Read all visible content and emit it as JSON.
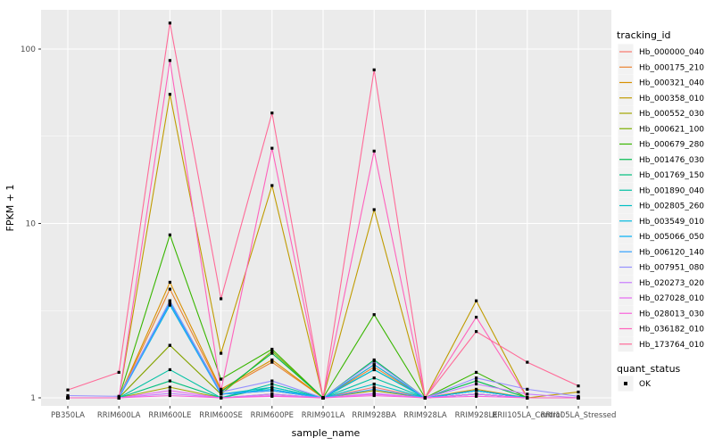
{
  "chart_data": {
    "type": "line",
    "title": "",
    "xlabel": "sample_name",
    "ylabel": "FPKM + 1",
    "y_scale": "log10",
    "ylim": [
      0.9,
      170
    ],
    "y_ticks": [
      1,
      10,
      100
    ],
    "y_tick_labels": [
      "1",
      "10",
      "100"
    ],
    "y_minor_ticks": [
      3.1623,
      31.623
    ],
    "grid": "on",
    "panel_bg": "#EBEBEB",
    "grid_color": "#FFFFFF",
    "axis_text_color": "#4D4D4D",
    "tick_mark_color": "#333333",
    "legend_position": "right",
    "categories": [
      "PB350LA",
      "RRIM600LA",
      "RRIM600LE",
      "RRIM600SE",
      "RRIM600PE",
      "RRIM901LA",
      "RRIM928BA",
      "RRIM928LA",
      "RRIM928LE",
      "RRII105LA_Control",
      "RRII105LA_Stressed"
    ],
    "series": [
      {
        "name": "Hb_000000_040",
        "color": "#F8766D",
        "values": [
          1,
          1,
          2.0,
          1.05,
          1.1,
          1,
          1.15,
          1,
          1.05,
          1,
          1
        ]
      },
      {
        "name": "Hb_000175_210",
        "color": "#EA8331",
        "values": [
          1,
          1,
          4.2,
          1.1,
          1.6,
          1,
          1.5,
          1,
          1.1,
          1,
          1
        ]
      },
      {
        "name": "Hb_000321_040",
        "color": "#D89000",
        "values": [
          1,
          1,
          4.6,
          1.12,
          1.65,
          1,
          1.55,
          1,
          1.12,
          1,
          1
        ]
      },
      {
        "name": "Hb_000358_010",
        "color": "#C09B00",
        "values": [
          1,
          1,
          55,
          1.8,
          16.5,
          1,
          12,
          1,
          3.6,
          1,
          1.08
        ]
      },
      {
        "name": "Hb_000552_030",
        "color": "#A3A500",
        "values": [
          1,
          1,
          1.15,
          1,
          1.05,
          1,
          1.1,
          1,
          1.05,
          1,
          1
        ]
      },
      {
        "name": "Hb_000621_100",
        "color": "#7CAE00",
        "values": [
          1,
          1,
          2.0,
          1.05,
          1.85,
          1,
          1.45,
          1,
          1.1,
          1,
          1
        ]
      },
      {
        "name": "Hb_000679_280",
        "color": "#39B600",
        "values": [
          1,
          1,
          8.6,
          1.28,
          1.9,
          1,
          3.0,
          1,
          1.4,
          1,
          1
        ]
      },
      {
        "name": "Hb_001476_030",
        "color": "#00BB4E",
        "values": [
          1,
          1,
          3.6,
          1.08,
          1.8,
          1,
          1.65,
          1,
          1.25,
          1,
          1
        ]
      },
      {
        "name": "Hb_001769_150",
        "color": "#00BF7D",
        "values": [
          1,
          1,
          1.25,
          1,
          1.15,
          1,
          1.45,
          1,
          1.1,
          1,
          1
        ]
      },
      {
        "name": "Hb_001890_040",
        "color": "#00C1A3",
        "values": [
          1,
          1,
          1.45,
          1,
          1.2,
          1,
          1.3,
          1,
          1.05,
          1,
          1
        ]
      },
      {
        "name": "Hb_002805_260",
        "color": "#00BFC4",
        "values": [
          1,
          1,
          3.4,
          1.05,
          1.15,
          1,
          1.2,
          1,
          1.05,
          1,
          1
        ]
      },
      {
        "name": "Hb_003549_010",
        "color": "#00BAE0",
        "values": [
          1,
          1,
          3.5,
          1.05,
          1.12,
          1,
          1.45,
          1,
          1.1,
          1,
          1
        ]
      },
      {
        "name": "Hb_005066_050",
        "color": "#00B0F6",
        "values": [
          1,
          1,
          3.55,
          1.05,
          1.1,
          1,
          1.55,
          1,
          1.1,
          1,
          1
        ]
      },
      {
        "name": "Hb_006120_140",
        "color": "#35A2FF",
        "values": [
          1,
          1,
          3.45,
          1.05,
          1.1,
          1,
          1.12,
          1,
          1.05,
          1,
          1
        ]
      },
      {
        "name": "Hb_007951_080",
        "color": "#9590FF",
        "values": [
          1.03,
          1.02,
          3.6,
          1.08,
          1.25,
          1,
          1.62,
          1,
          1.3,
          1.12,
          1.02
        ]
      },
      {
        "name": "Hb_020273_020",
        "color": "#C77CFF",
        "values": [
          1,
          1,
          1.06,
          1,
          1.05,
          1,
          1.06,
          1,
          1.2,
          1.05,
          1
        ]
      },
      {
        "name": "Hb_027028_010",
        "color": "#E76BF3",
        "values": [
          1,
          1,
          1.1,
          1,
          1.03,
          1,
          1.05,
          1,
          1.05,
          1,
          1
        ]
      },
      {
        "name": "Hb_028013_030",
        "color": "#FA62DB",
        "values": [
          1,
          1,
          1.03,
          1,
          1.02,
          1,
          1.03,
          1,
          1.02,
          1,
          1
        ]
      },
      {
        "name": "Hb_036182_010",
        "color": "#FF62BC",
        "values": [
          1,
          1,
          86,
          1.1,
          27,
          1,
          26,
          1,
          2.9,
          1,
          1
        ]
      },
      {
        "name": "Hb_173764_010",
        "color": "#FF6A98",
        "values": [
          1.11,
          1.4,
          141,
          3.7,
          43,
          1,
          76,
          1,
          2.4,
          1.6,
          1.17
        ]
      }
    ],
    "point_marker": {
      "shape": "square",
      "color": "#000000"
    },
    "legend": {
      "color_title": "tracking_id",
      "shape_title": "quant_status",
      "shape_items": [
        {
          "label": "OK",
          "marker": "black-square"
        }
      ],
      "key_bg": "#F2F2F2"
    }
  }
}
